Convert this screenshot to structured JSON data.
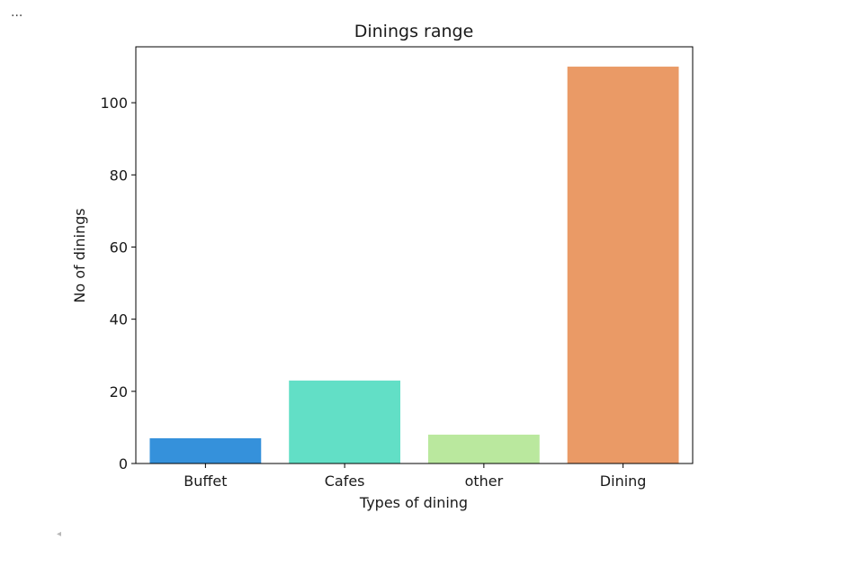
{
  "cell": {
    "ellipsis": "...",
    "scroll_arrow": "◂"
  },
  "chart_data": {
    "type": "bar",
    "title": "Dinings range",
    "xlabel": "Types of dining",
    "ylabel": "No of dinings",
    "categories": [
      "Buffet",
      "Cafes",
      "other",
      "Dining"
    ],
    "values": [
      7,
      23,
      8,
      110
    ],
    "colors": [
      "#3591db",
      "#62dfc6",
      "#bae89e",
      "#ea9a66"
    ],
    "ylim": [
      0,
      115.5
    ],
    "yticks": [
      0,
      20,
      40,
      60,
      80,
      100
    ],
    "grid": false,
    "legend": "none"
  }
}
